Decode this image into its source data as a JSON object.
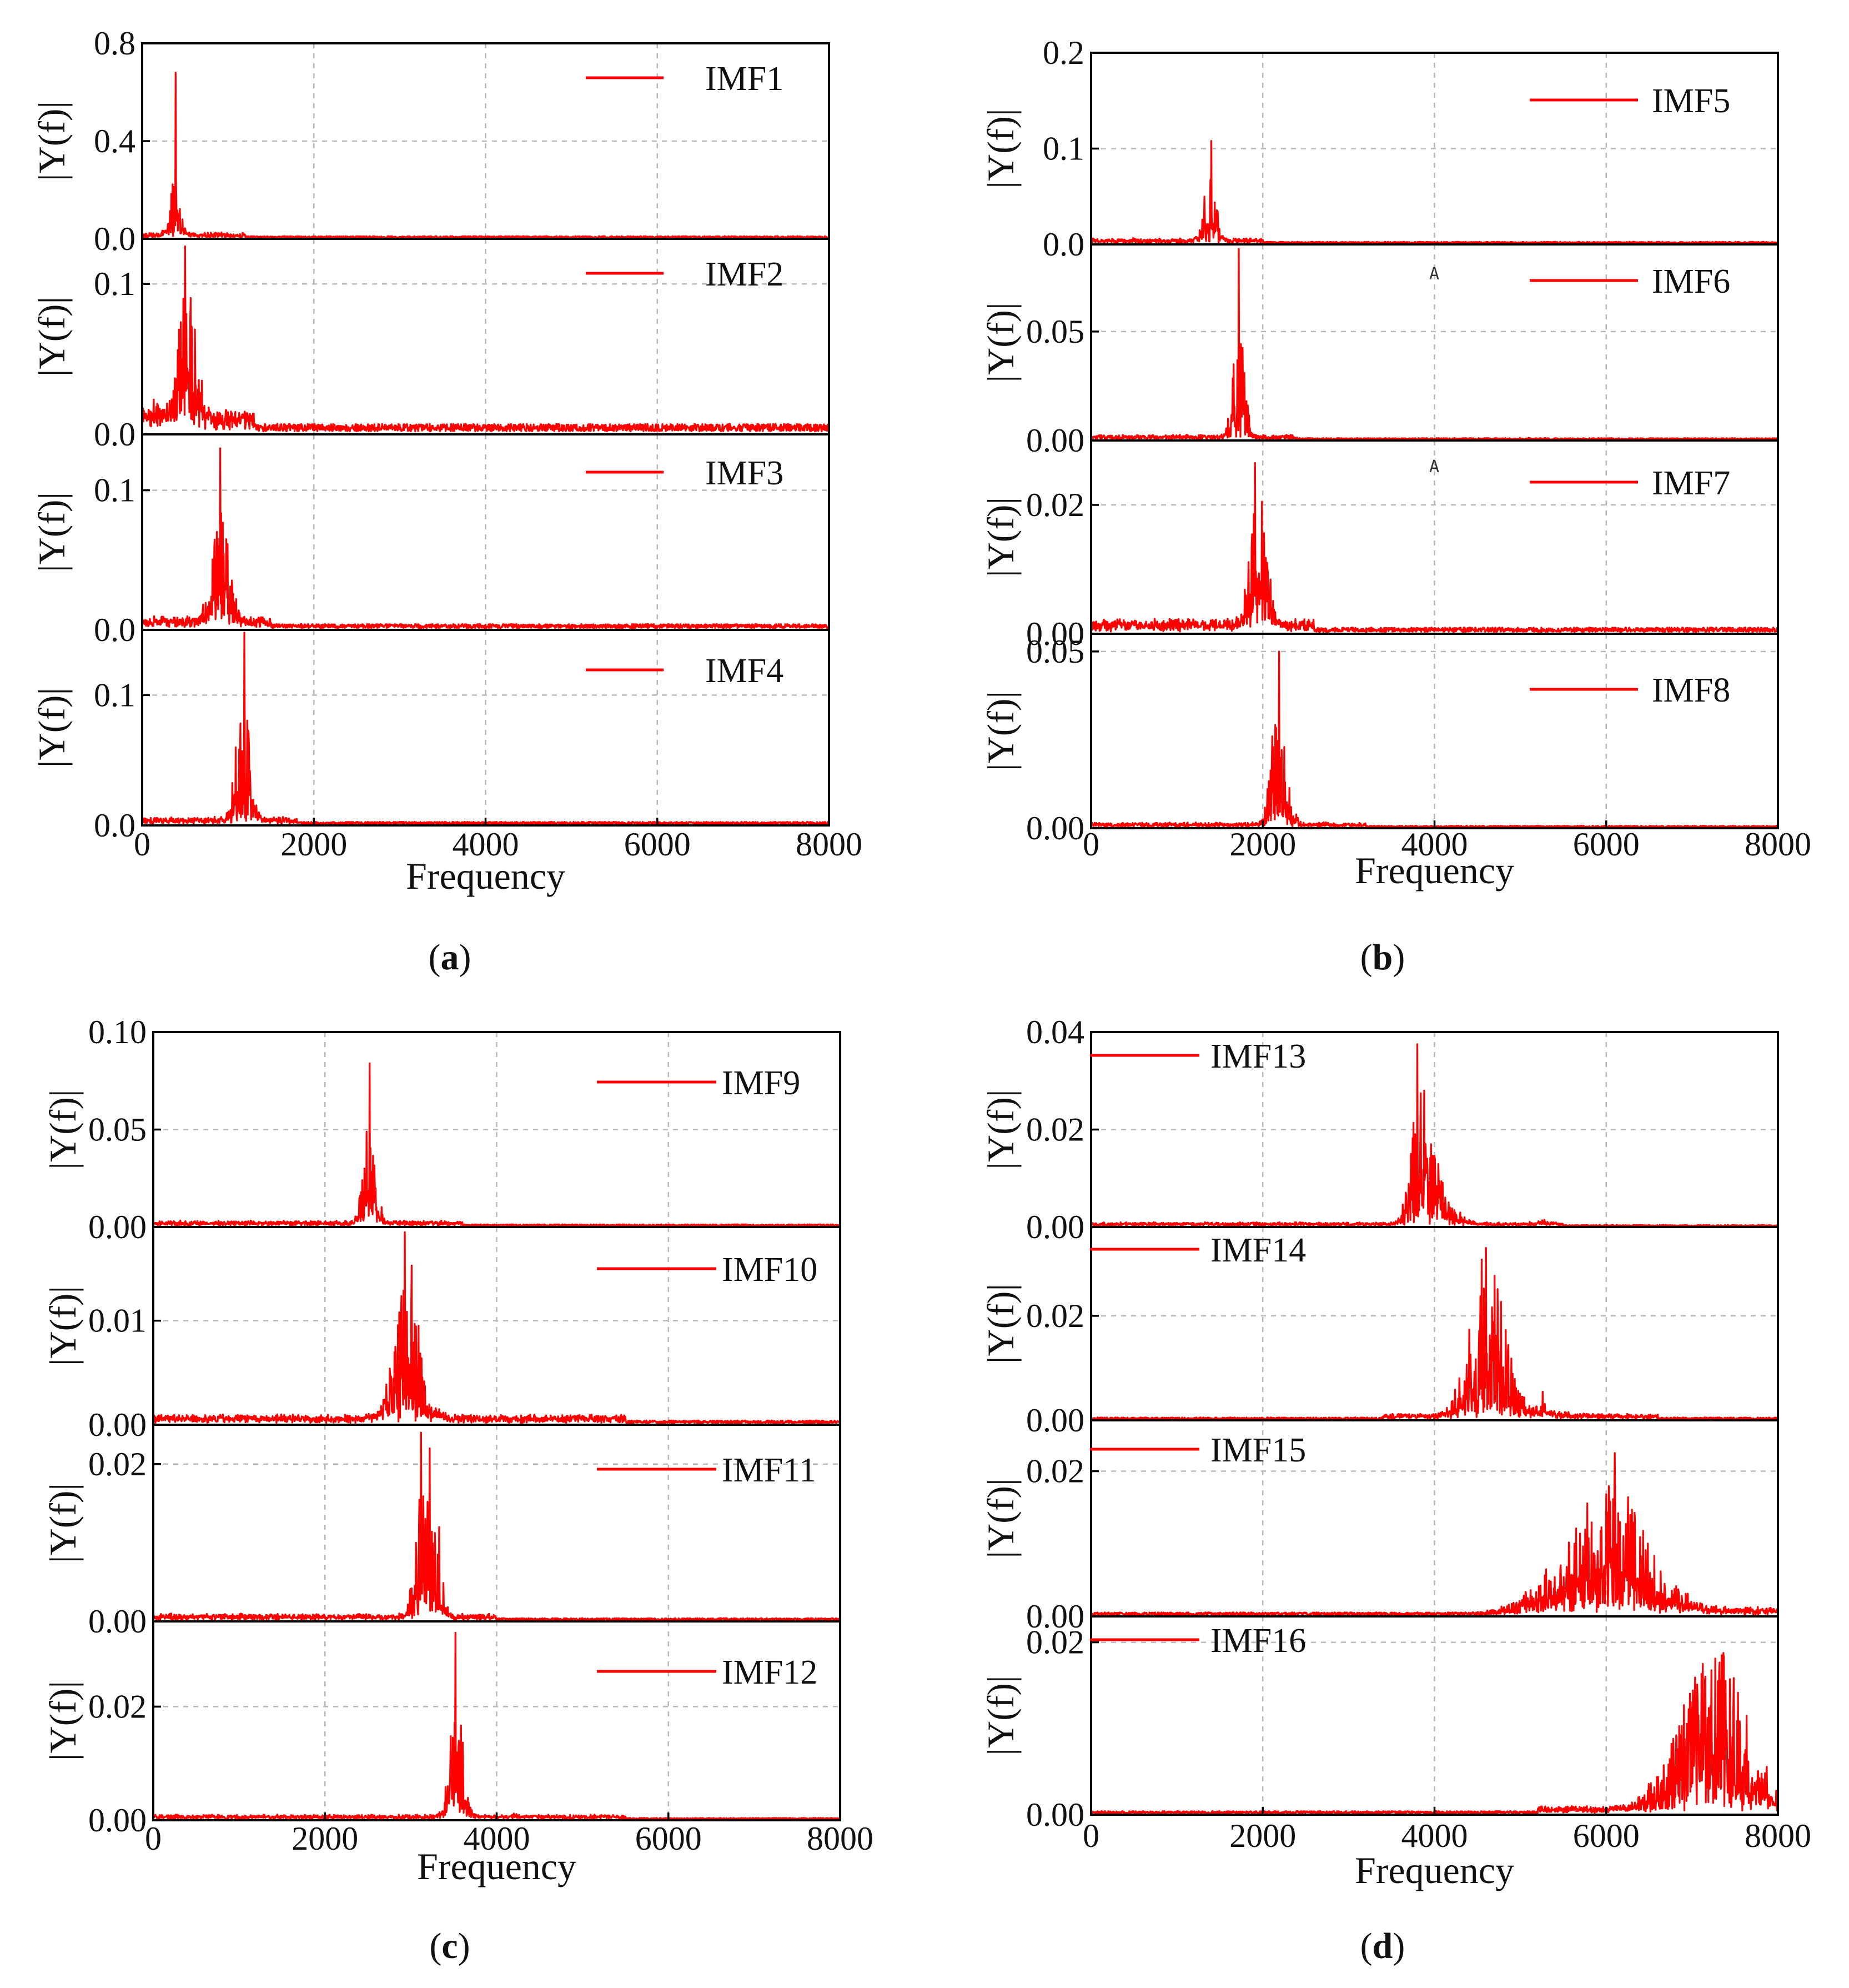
{
  "figure": {
    "line_color": "#ff0000",
    "grid_color": "#b9b9b9",
    "stray_marks": [
      "A",
      "A"
    ]
  },
  "chart_data": [
    {
      "panel_id": "a",
      "caption_letter": "a",
      "type": "line",
      "xlabel": "Frequency",
      "xlim": [
        0,
        8000
      ],
      "xticks": [
        "0",
        "2000",
        "4000",
        "6000",
        "8000"
      ],
      "subplots": [
        {
          "legend": "IMF1",
          "ylabel": "|Y(f)|",
          "ylim": [
            0,
            0.8
          ],
          "yticks": [
            "0.0",
            "0.4",
            "0.8"
          ],
          "ytick_values": [
            0,
            0.4,
            0.8
          ],
          "peaks": [
            [
              390,
              0.68
            ],
            [
              300,
              0.06
            ],
            [
              470,
              0.08
            ]
          ],
          "spread": 120,
          "base": 0.008,
          "noise_band": [
            0,
            1200
          ]
        },
        {
          "legend": "IMF2",
          "ylabel": "|Y(f)|",
          "ylim": [
            0,
            0.13
          ],
          "yticks": [
            "0.0",
            "0.1"
          ],
          "ytick_values": [
            0,
            0.1
          ],
          "peaks": [
            [
              500,
              0.125
            ],
            [
              580,
              0.07
            ],
            [
              470,
              0.05
            ],
            [
              650,
              0.03
            ],
            [
              100,
              0.015
            ],
            [
              260,
              0.015
            ]
          ],
          "spread": 220,
          "base": 0.005,
          "noise_band": [
            0,
            1300
          ]
        },
        {
          "legend": "IMF3",
          "ylabel": "|Y(f)|",
          "ylim": [
            0,
            0.14
          ],
          "yticks": [
            "0.0",
            "0.1"
          ],
          "ytick_values": [
            0,
            0.1
          ],
          "peaks": [
            [
              910,
              0.13
            ],
            [
              780,
              0.02
            ],
            [
              980,
              0.03
            ],
            [
              850,
              0.025
            ],
            [
              1050,
              0.015
            ]
          ],
          "spread": 220,
          "base": 0.003,
          "noise_band": [
            0,
            1500
          ]
        },
        {
          "legend": "IMF4",
          "ylabel": "|Y(f)|",
          "ylim": [
            0,
            0.15
          ],
          "yticks": [
            "0.0",
            "0.1"
          ],
          "ytick_values": [
            0,
            0.1
          ],
          "peaks": [
            [
              1190,
              0.148
            ],
            [
              1090,
              0.06
            ],
            [
              1260,
              0.035
            ],
            [
              1140,
              0.02
            ]
          ],
          "spread": 180,
          "base": 0.002,
          "noise_band": [
            0,
            1800
          ]
        }
      ]
    },
    {
      "panel_id": "b",
      "caption_letter": "b",
      "type": "line",
      "xlabel": "Frequency",
      "xlim": [
        0,
        8000
      ],
      "xticks": [
        "0",
        "2000",
        "4000",
        "6000",
        "8000"
      ],
      "subplots": [
        {
          "legend": "IMF5",
          "ylabel": "|Y(f)|",
          "ylim": [
            0,
            0.2
          ],
          "yticks": [
            "0.0",
            "0.1",
            "0.2"
          ],
          "ytick_values": [
            0,
            0.1,
            0.2
          ],
          "peaks": [
            [
              1400,
              0.108
            ],
            [
              1320,
              0.05
            ],
            [
              1460,
              0.025
            ]
          ],
          "spread": 160,
          "base": 0.002,
          "noise_band": [
            0,
            2000
          ]
        },
        {
          "legend": "IMF6",
          "ylabel": "|Y(f)|",
          "ylim": [
            0,
            0.09
          ],
          "yticks": [
            "0.00",
            "0.05"
          ],
          "ytick_values": [
            0,
            0.05
          ],
          "peaks": [
            [
              1720,
              0.088
            ],
            [
              1660,
              0.035
            ],
            [
              1760,
              0.03
            ],
            [
              1800,
              0.012
            ]
          ],
          "spread": 140,
          "base": 0.0008,
          "noise_band": [
            0,
            2400
          ]
        },
        {
          "legend": "IMF7",
          "ylabel": "|Y(f)|",
          "ylim": [
            0,
            0.03
          ],
          "yticks": [
            "0.00",
            "0.02"
          ],
          "ytick_values": [
            0,
            0.02
          ],
          "peaks": [
            [
              1910,
              0.0265
            ],
            [
              1990,
              0.0205
            ],
            [
              1830,
              0.008
            ],
            [
              2060,
              0.008
            ]
          ],
          "spread": 200,
          "base": 0.0007,
          "noise_band": [
            0,
            2600
          ]
        },
        {
          "legend": "IMF8",
          "ylabel": "|Y(f)|",
          "ylim": [
            0,
            0.055
          ],
          "yticks": [
            "0.00",
            "0.05"
          ],
          "ytick_values": [
            0,
            0.05
          ],
          "peaks": [
            [
              2190,
              0.05
            ],
            [
              2110,
              0.026
            ],
            [
              2260,
              0.013
            ],
            [
              2330,
              0.006
            ]
          ],
          "spread": 180,
          "base": 0.0005,
          "noise_band": [
            0,
            3200
          ]
        }
      ]
    },
    {
      "panel_id": "c",
      "caption_letter": "c",
      "type": "line",
      "xlabel": "Frequency",
      "xlim": [
        0,
        8000
      ],
      "xticks": [
        "0",
        "2000",
        "4000",
        "6000",
        "8000"
      ],
      "subplots": [
        {
          "legend": "IMF9",
          "ylabel": "|Y(f)|",
          "ylim": [
            0,
            0.1
          ],
          "yticks": [
            "0.00",
            "0.05",
            "0.10"
          ],
          "ytick_values": [
            0,
            0.05,
            0.1
          ],
          "peaks": [
            [
              2520,
              0.084
            ],
            [
              2460,
              0.03
            ],
            [
              2580,
              0.012
            ],
            [
              2620,
              0.008
            ]
          ],
          "spread": 180,
          "base": 0.001,
          "noise_band": [
            0,
            3600
          ]
        },
        {
          "legend": "IMF10",
          "ylabel": "|Y(f)|",
          "ylim": [
            0,
            0.019
          ],
          "yticks": [
            "0.00",
            "0.01"
          ],
          "ytick_values": [
            0,
            0.01
          ],
          "peaks": [
            [
              2930,
              0.0185
            ],
            [
              3010,
              0.0153
            ],
            [
              2820,
              0.0075
            ],
            [
              3090,
              0.006
            ],
            [
              2700,
              0.002
            ],
            [
              3330,
              0.0015
            ]
          ],
          "spread": 260,
          "base": 0.0003,
          "noise_band": [
            0,
            5500
          ]
        },
        {
          "legend": "IMF11",
          "ylabel": "|Y(f)|",
          "ylim": [
            0,
            0.025
          ],
          "yticks": [
            "0.00",
            "0.02"
          ],
          "ytick_values": [
            0,
            0.02
          ],
          "peaks": [
            [
              3120,
              0.024
            ],
            [
              3220,
              0.022
            ],
            [
              3330,
              0.012
            ],
            [
              3060,
              0.01
            ]
          ],
          "spread": 180,
          "base": 0.0003,
          "noise_band": [
            0,
            4000
          ]
        },
        {
          "legend": "IMF12",
          "ylabel": "|Y(f)|",
          "ylim": [
            0,
            0.035
          ],
          "yticks": [
            "0.00",
            "0.02"
          ],
          "ytick_values": [
            0,
            0.02
          ],
          "peaks": [
            [
              3520,
              0.033
            ],
            [
              3560,
              0.014
            ],
            [
              3430,
              0.006
            ],
            [
              3600,
              0.005
            ],
            [
              4200,
              0.0012
            ]
          ],
          "spread": 180,
          "base": 0.0003,
          "noise_band": [
            0,
            5500
          ]
        }
      ]
    },
    {
      "panel_id": "d",
      "caption_letter": "d",
      "type": "line",
      "xlabel": "Frequency",
      "xlim": [
        0,
        8000
      ],
      "xticks": [
        "0",
        "2000",
        "4000",
        "6000",
        "8000"
      ],
      "subplots": [
        {
          "legend": "IMF13",
          "ylabel": "|Y(f)|",
          "ylim": [
            0,
            0.04
          ],
          "yticks": [
            "0.00",
            "0.02",
            "0.04"
          ],
          "ytick_values": [
            0,
            0.02,
            0.04
          ],
          "peaks": [
            [
              3800,
              0.0375
            ],
            [
              3880,
              0.028
            ],
            [
              3960,
              0.017
            ],
            [
              4060,
              0.006
            ],
            [
              4180,
              0.004
            ],
            [
              4300,
              0.003
            ],
            [
              5280,
              0.0015
            ]
          ],
          "spread": 280,
          "base": 0.0003,
          "noise_band": [
            0,
            5500
          ]
        },
        {
          "legend": "IMF14",
          "ylabel": "|Y(f)|",
          "ylim": [
            0,
            0.037
          ],
          "yticks": [
            "0.00",
            "0.02"
          ],
          "ytick_values": [
            0,
            0.02
          ],
          "peaks": [
            [
              4600,
              0.033
            ],
            [
              4540,
              0.016
            ],
            [
              4690,
              0.017
            ],
            [
              4800,
              0.009
            ],
            [
              5260,
              0.0055
            ],
            [
              4420,
              0.006
            ]
          ],
          "spread": 480,
          "base": 0.0004,
          "noise_band": [
            3400,
            6600
          ]
        },
        {
          "legend": "IMF15",
          "ylabel": "|Y(f)|",
          "ylim": [
            0,
            0.027
          ],
          "yticks": [
            "0.00",
            "0.02"
          ],
          "ytick_values": [
            0,
            0.02
          ],
          "peaks": [
            [
              6100,
              0.0225
            ],
            [
              5900,
              0.009
            ],
            [
              6270,
              0.008
            ],
            [
              5300,
              0.0065
            ],
            [
              6680,
              0.0045
            ],
            [
              5650,
              0.0065
            ]
          ],
          "spread": 900,
          "base": 0.0004,
          "noise_band": [
            5000,
            8000
          ]
        },
        {
          "legend": "IMF16",
          "ylabel": "|Y(f)|",
          "ylim": [
            0,
            0.023
          ],
          "yticks": [
            "0.00",
            "0.02"
          ],
          "ytick_values": [
            0,
            0.02
          ],
          "peaks": [
            [
              7300,
              0.0155
            ],
            [
              7000,
              0.0105
            ],
            [
              7620,
              0.0075
            ],
            [
              7470,
              0.009
            ],
            [
              6750,
              0.0055
            ],
            [
              7200,
              0.0095
            ]
          ],
          "spread": 800,
          "base": 0.0003,
          "noise_band": [
            5200,
            8000
          ]
        }
      ]
    }
  ]
}
